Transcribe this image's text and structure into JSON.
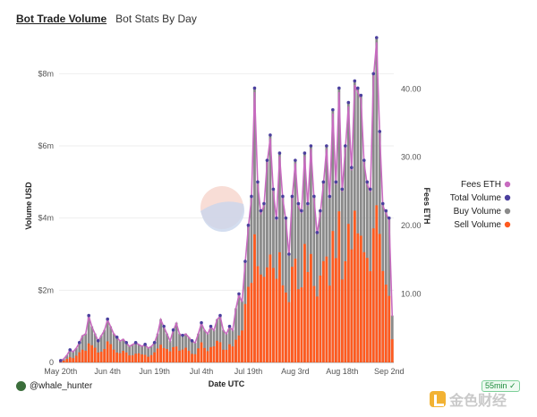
{
  "tabs": [
    {
      "label": "Bot Trade Volume"
    },
    {
      "label": "Bot Stats By Day"
    }
  ],
  "footer": {
    "user": "@whale_hunter",
    "age": "55min",
    "watermark": "金色财经"
  },
  "chart_data": {
    "type": "bar",
    "title": "",
    "xlabel": "Date UTC",
    "ylabel": "Volume USD",
    "y2label": "Fees ETH",
    "ylim": [
      0,
      9000000
    ],
    "y2lim": [
      0,
      47.5
    ],
    "yticks": [
      {
        "v": 0,
        "label": "0"
      },
      {
        "v": 2000000,
        "label": "$2m"
      },
      {
        "v": 4000000,
        "label": "$4m"
      },
      {
        "v": 6000000,
        "label": "$6m"
      },
      {
        "v": 8000000,
        "label": "$8m"
      }
    ],
    "y2ticks": [
      {
        "v": 10,
        "label": "10.00"
      },
      {
        "v": 20,
        "label": "20.00"
      },
      {
        "v": 30,
        "label": "30.00"
      },
      {
        "v": 40,
        "label": "40.00"
      }
    ],
    "xticks": [
      {
        "index": 0,
        "label": "May 20th"
      },
      {
        "index": 15,
        "label": "Jun 4th"
      },
      {
        "index": 30,
        "label": "Jun 19th"
      },
      {
        "index": 45,
        "label": "Jul 4th"
      },
      {
        "index": 60,
        "label": "Jul 19th"
      },
      {
        "index": 75,
        "label": "Aug 3rd"
      },
      {
        "index": 90,
        "label": "Aug 18th"
      },
      {
        "index": 105,
        "label": "Sep 2nd"
      }
    ],
    "legend": {
      "position": "right"
    },
    "colors": {
      "fees": "#c86bc0",
      "total": "#4b3f9e",
      "buy": "#8a8a8a",
      "sell": "#ff5a1f"
    },
    "series": [
      {
        "name": "Fees ETH"
      },
      {
        "name": "Total Volume"
      },
      {
        "name": "Buy Volume"
      },
      {
        "name": "Sell Volume"
      }
    ],
    "total": [
      0.05,
      0.1,
      0.2,
      0.35,
      0.3,
      0.4,
      0.55,
      0.75,
      0.8,
      1.3,
      1.0,
      0.8,
      0.6,
      0.75,
      0.9,
      1.2,
      1.0,
      0.8,
      0.7,
      0.6,
      0.65,
      0.55,
      0.45,
      0.5,
      0.55,
      0.5,
      0.45,
      0.5,
      0.4,
      0.45,
      0.55,
      0.8,
      1.2,
      1.0,
      0.8,
      0.6,
      0.9,
      1.1,
      0.8,
      0.75,
      0.8,
      0.7,
      0.6,
      0.55,
      0.8,
      1.1,
      0.9,
      0.8,
      1.0,
      0.9,
      1.2,
      1.3,
      0.9,
      0.8,
      1.0,
      0.9,
      1.5,
      1.9,
      1.7,
      2.8,
      3.8,
      4.6,
      7.6,
      5.0,
      4.2,
      4.4,
      5.6,
      6.3,
      4.8,
      4.0,
      5.8,
      4.6,
      4.0,
      3.0,
      4.6,
      5.6,
      4.4,
      4.2,
      5.8,
      4.4,
      6.0,
      4.6,
      3.6,
      4.2,
      5.0,
      6.0,
      4.6,
      7.0,
      5.0,
      7.6,
      4.8,
      6.0,
      7.2,
      5.4,
      7.8,
      7.6,
      7.4,
      5.6,
      5.0,
      4.8,
      8.0,
      9.0,
      6.4,
      4.4,
      4.2,
      4.0,
      1.3
    ]
  }
}
